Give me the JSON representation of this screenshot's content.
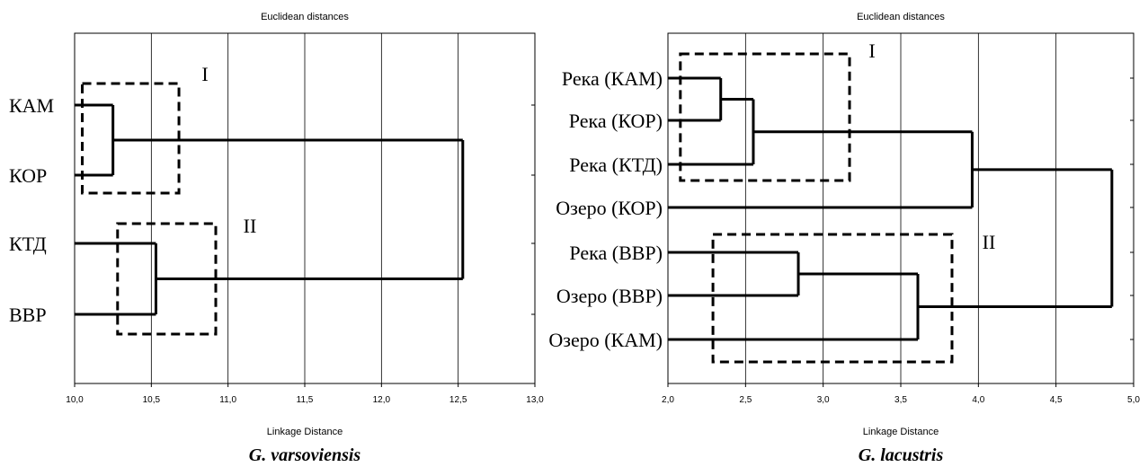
{
  "chart_data": [
    {
      "type": "dendrogram",
      "title": "Euclidean distances",
      "xlabel": "Linkage Distance",
      "caption": "G. varsoviensis",
      "xlim": [
        10.0,
        13.0
      ],
      "xticks": [
        "10,0",
        "10,5",
        "11,0",
        "11,5",
        "12,0",
        "12,5",
        "13,0"
      ],
      "leaves": [
        "КАМ",
        "КОР",
        "КТД",
        "ВВР"
      ],
      "merges": [
        {
          "a": "КАМ",
          "b": "КОР",
          "distance": 10.25
        },
        {
          "a": "КТД",
          "b": "ВВР",
          "distance": 10.53
        },
        {
          "a": "КАМ+КОР",
          "b": "КТД+ВВР",
          "distance": 12.53
        }
      ],
      "clusters": [
        {
          "label": "I",
          "from": 10.05,
          "to": 10.68,
          "leaves": [
            "КАМ",
            "КОР"
          ]
        },
        {
          "label": "II",
          "from": 10.28,
          "to": 10.92,
          "leaves": [
            "КТД",
            "ВВР"
          ]
        }
      ]
    },
    {
      "type": "dendrogram",
      "title": "Euclidean distances",
      "xlabel": "Linkage Distance",
      "caption": "G. lacustris",
      "xlim": [
        2.0,
        5.0
      ],
      "xticks": [
        "2,0",
        "2,5",
        "3,0",
        "3,5",
        "4,0",
        "4,5",
        "5,0"
      ],
      "leaves": [
        "Река (КАМ)",
        "Река (КОР)",
        "Река (КТД)",
        "Озеро (КОР)",
        "Река (ВВР)",
        "Озеро (ВВР)",
        "Озеро (КАМ)"
      ],
      "merges": [
        {
          "a": "Река (КАМ)",
          "b": "Река (КОР)",
          "distance": 2.34
        },
        {
          "a": "Река (КАМ)+Река (КОР)",
          "b": "Река (КТД)",
          "distance": 2.55
        },
        {
          "a": "Река (КАМ)+Река (КОР)+Река (КТД)",
          "b": "Озеро (КОР)",
          "distance": 3.96
        },
        {
          "a": "Река (ВВР)",
          "b": "Озеро (ВВР)",
          "distance": 2.84
        },
        {
          "a": "Река (ВВР)+Озеро (ВВР)",
          "b": "Озеро (КАМ)",
          "distance": 3.61
        },
        {
          "a": "cluster-A",
          "b": "cluster-B",
          "distance": 4.86
        }
      ],
      "clusters": [
        {
          "label": "I",
          "from": 2.08,
          "to": 3.17,
          "leaves": [
            "Река (КАМ)",
            "Река (КОР)",
            "Река (КТД)"
          ]
        },
        {
          "label": "II",
          "from": 2.29,
          "to": 3.83,
          "leaves": [
            "Река (ВВР)",
            "Озеро (ВВР)",
            "Озеро (КАМ)"
          ]
        }
      ]
    }
  ]
}
